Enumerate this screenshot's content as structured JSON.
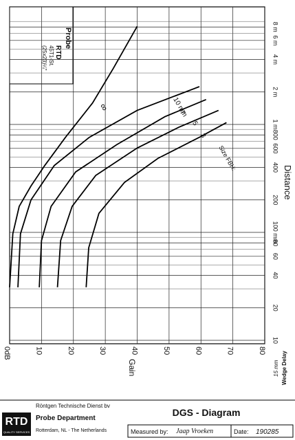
{
  "chart_data": {
    "type": "line",
    "x_label": "Gain",
    "y_label": "Distance",
    "xlim": [
      0,
      80
    ],
    "xticks": [
      {
        "value": 0,
        "label": "0dB"
      },
      10,
      20,
      30,
      40,
      50,
      60,
      70,
      80
    ],
    "ylim": [
      10,
      10000
    ],
    "yticks": [
      10,
      20,
      40,
      60,
      80,
      {
        "value": 100,
        "label": "100 mm"
      },
      200,
      400,
      600,
      800,
      {
        "value": 1000,
        "label": "1 m"
      },
      {
        "value": 2000,
        "label": "2 m"
      },
      {
        "value": 4000,
        "label": "4 m"
      },
      {
        "value": 6000,
        "label": "6 m"
      },
      {
        "value": 8000,
        "label": "8 m"
      }
    ],
    "yminor": [
      30,
      50,
      70,
      90,
      300,
      500,
      700,
      900,
      3000,
      5000,
      7000,
      9000
    ],
    "log_y": true,
    "grid": true,
    "size_label": "Size FBH:",
    "series": [
      {
        "name": "∞",
        "color": "#000000",
        "x": [
          0,
          1,
          3,
          6.7,
          11,
          17.5,
          26,
          32.5,
          40
        ],
        "values": [
          31,
          97,
          174,
          269,
          416,
          759,
          1580,
          3300,
          8100
        ]
      },
      {
        "name": "10 mm",
        "color": "#000000",
        "x": [
          2.6,
          3.4,
          6.7,
          14,
          25,
          40,
          59.5
        ],
        "values": [
          31,
          97,
          200,
          416,
          760,
          1350,
          2240
        ]
      },
      {
        "name": "7",
        "color": "#000000",
        "x": [
          9.3,
          10,
          13,
          20.7,
          33.6,
          48.7,
          61.6
        ],
        "values": [
          31,
          84,
          174,
          363,
          650,
          1180,
          1700
        ]
      },
      {
        "name": "5",
        "color": "#000000",
        "x": [
          15,
          16,
          19.6,
          27,
          40,
          53,
          65.5
        ],
        "values": [
          31,
          84,
          174,
          337,
          605,
          940,
          1350
        ]
      },
      {
        "name": "3",
        "color": "#000000",
        "x": [
          24,
          24.8,
          28,
          36,
          46.5,
          59.5,
          68
        ],
        "values": [
          31,
          72,
          150,
          290,
          485,
          760,
          1040
        ]
      }
    ],
    "wedge_label": "Wedge Delay",
    "wedge_value": "15 mm",
    "probe": {
      "title": "Probe",
      "name": "RTD",
      "model": "45T1-St.",
      "size": "(25x23)¼\""
    },
    "footer": {
      "logo": "RTD",
      "logo_sub": "QUALITY SERVICES",
      "company": "Röntgen Technische Dienst bv",
      "department": "Probe Department",
      "address": "Rotterdam, NL - The Netherlands",
      "title": "DGS - Diagram",
      "measured_label": "Measured by:",
      "measured_by": "Jaap Vroeken",
      "date_label": "Date:",
      "date": "190285"
    }
  }
}
